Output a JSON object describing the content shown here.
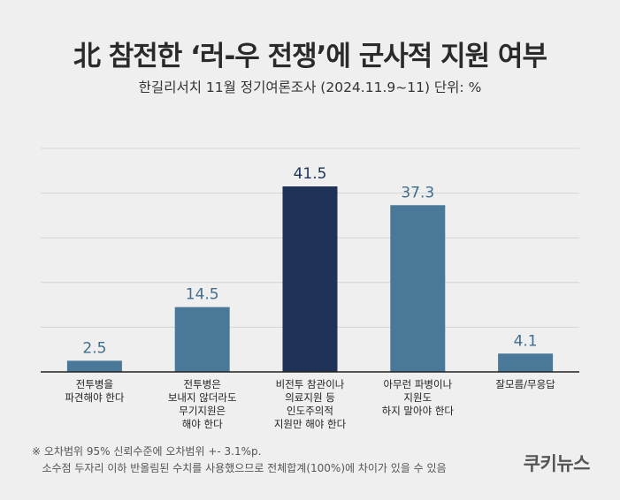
{
  "header": {
    "title": "北 참전한 ‘러-우 전쟁’에 군사적 지원 여부",
    "subtitle": "한길리서치 11월 정기여론조사 (2024.11.9~11) 단위: %"
  },
  "chart_data": {
    "type": "bar",
    "title": "北 참전한 ‘러-우 전쟁’에 군사적 지원 여부",
    "xlabel": "",
    "ylabel": "",
    "ylim": [
      0,
      50
    ],
    "grid": true,
    "categories": [
      [
        "전투병을",
        "파견해야 한다"
      ],
      [
        "전투병은",
        "보내지 않더라도",
        "무기지원은",
        "해야 한다"
      ],
      [
        "비전투 참관이나",
        "의료지원 등",
        "인도주의적",
        "지원만 해야 한다"
      ],
      [
        "아무런 파병이나",
        "지원도",
        "하지 말아야 한다"
      ],
      [
        "잘모름/무응답"
      ]
    ],
    "values": [
      2.5,
      14.5,
      41.5,
      37.3,
      4.1
    ],
    "value_labels": [
      "2.5",
      "14.5",
      "41.5",
      "37.3",
      "4.1"
    ],
    "colors": [
      "#4a7898",
      "#4a7898",
      "#1e3357",
      "#4a7898",
      "#4a7898"
    ],
    "label_colors": [
      "#3f6d8f",
      "#3f6d8f",
      "#1e3357",
      "#3f6d8f",
      "#3f6d8f"
    ]
  },
  "footnotes": [
    "※ 오차범위 95% 신뢰수준에 오차범위 +- 3.1%p.",
    "   소수점 두자리 이하 반올림된 수치를 사용했으므로 전체합계(100%)에 차이가 있을 수 있음"
  ],
  "brand": "쿠키뉴스",
  "colors": {
    "background": "#efefef",
    "gridline": "#d4d4d4",
    "axis": "#222222"
  }
}
